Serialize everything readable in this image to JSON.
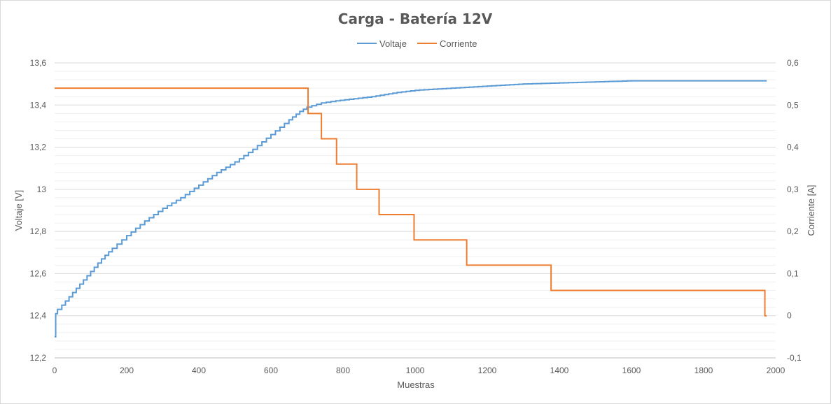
{
  "chart_data": {
    "type": "line",
    "title": "Carga - Batería 12V",
    "xlabel": "Muestras",
    "ylabel": "Voltaje [V]",
    "y2label": "Corriente [A]",
    "xlim": [
      0,
      2000
    ],
    "ylim": [
      12.2,
      13.6
    ],
    "y2lim": [
      -0.1,
      0.6
    ],
    "x_ticks": [
      "0",
      "200",
      "400",
      "600",
      "800",
      "1000",
      "1200",
      "1400",
      "1600",
      "1800",
      "2000"
    ],
    "y_ticks": [
      "12,2",
      "12,4",
      "12,6",
      "12,8",
      "13",
      "13,2",
      "13,4",
      "13,6"
    ],
    "y2_ticks": [
      "-0,1",
      "0",
      "0,1",
      "0,2",
      "0,3",
      "0,4",
      "0,5",
      "0,6"
    ],
    "grid": true,
    "legend_position": "top",
    "series": [
      {
        "name": "Voltaje",
        "axis": "left",
        "color": "#5b9bd5",
        "points": [
          [
            0,
            12.3
          ],
          [
            3,
            12.41
          ],
          [
            8,
            12.43
          ],
          [
            20,
            12.45
          ],
          [
            40,
            12.49
          ],
          [
            60,
            12.53
          ],
          [
            80,
            12.57
          ],
          [
            100,
            12.61
          ],
          [
            130,
            12.67
          ],
          [
            160,
            12.72
          ],
          [
            200,
            12.78
          ],
          [
            250,
            12.85
          ],
          [
            300,
            12.91
          ],
          [
            350,
            12.96
          ],
          [
            400,
            13.02
          ],
          [
            450,
            13.08
          ],
          [
            500,
            13.13
          ],
          [
            550,
            13.19
          ],
          [
            600,
            13.26
          ],
          [
            650,
            13.33
          ],
          [
            680,
            13.37
          ],
          [
            700,
            13.39
          ],
          [
            740,
            13.41
          ],
          [
            780,
            13.42
          ],
          [
            830,
            13.43
          ],
          [
            880,
            13.44
          ],
          [
            950,
            13.46
          ],
          [
            1000,
            13.47
          ],
          [
            1100,
            13.48
          ],
          [
            1200,
            13.49
          ],
          [
            1300,
            13.5
          ],
          [
            1400,
            13.505
          ],
          [
            1500,
            13.51
          ],
          [
            1600,
            13.515
          ],
          [
            1700,
            13.515
          ],
          [
            1800,
            13.515
          ],
          [
            1900,
            13.515
          ],
          [
            1975,
            13.515
          ]
        ]
      },
      {
        "name": "Corriente",
        "axis": "right",
        "color": "#ed7d31",
        "points": [
          [
            0,
            0.54
          ],
          [
            703,
            0.54
          ],
          [
            703,
            0.48
          ],
          [
            740,
            0.48
          ],
          [
            740,
            0.42
          ],
          [
            782,
            0.42
          ],
          [
            782,
            0.36
          ],
          [
            838,
            0.36
          ],
          [
            838,
            0.3
          ],
          [
            900,
            0.3
          ],
          [
            900,
            0.24
          ],
          [
            997,
            0.24
          ],
          [
            997,
            0.18
          ],
          [
            1143,
            0.18
          ],
          [
            1143,
            0.12
          ],
          [
            1377,
            0.12
          ],
          [
            1377,
            0.06
          ],
          [
            1970,
            0.06
          ],
          [
            1970,
            0.0
          ],
          [
            1975,
            0.0
          ]
        ]
      }
    ]
  }
}
